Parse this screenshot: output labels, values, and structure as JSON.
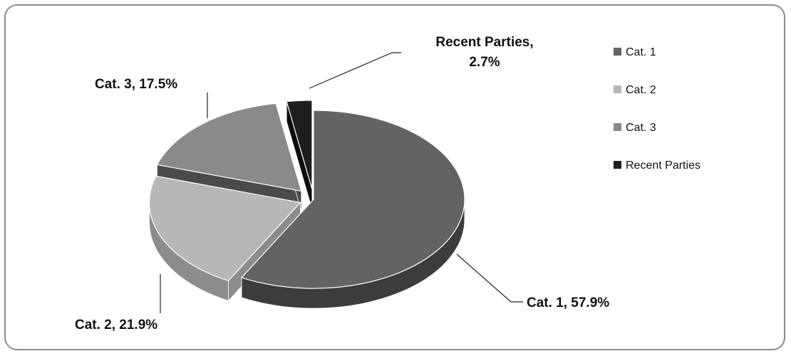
{
  "chart_data": {
    "type": "pie",
    "style": "3d-exploded",
    "categories": [
      "Cat. 1",
      "Cat. 2",
      "Cat. 3",
      "Recent Parties"
    ],
    "values": [
      57.9,
      21.9,
      17.5,
      2.7
    ],
    "unit": "%",
    "colors": [
      "#636363",
      "#b7b7b7",
      "#8a8a8a",
      "#1e1e1e"
    ],
    "side_colors": [
      "#3c3c3c",
      "#8c8c8c",
      "#4a4a4a",
      "#0c0c0c"
    ],
    "data_labels": [
      {
        "category": "Cat. 1",
        "text": "Cat. 1, 57.9%"
      },
      {
        "category": "Cat. 2",
        "text": "Cat. 2, 21.9%"
      },
      {
        "category": "Cat. 3",
        "text": "Cat. 3, 17.5%"
      },
      {
        "category": "Recent Parties",
        "line1": "Recent Parties,",
        "line2": "2.7%"
      }
    ],
    "legend": {
      "position": "right",
      "entries": [
        "Cat. 1",
        "Cat. 2",
        "Cat. 3",
        "Recent Parties"
      ]
    }
  }
}
